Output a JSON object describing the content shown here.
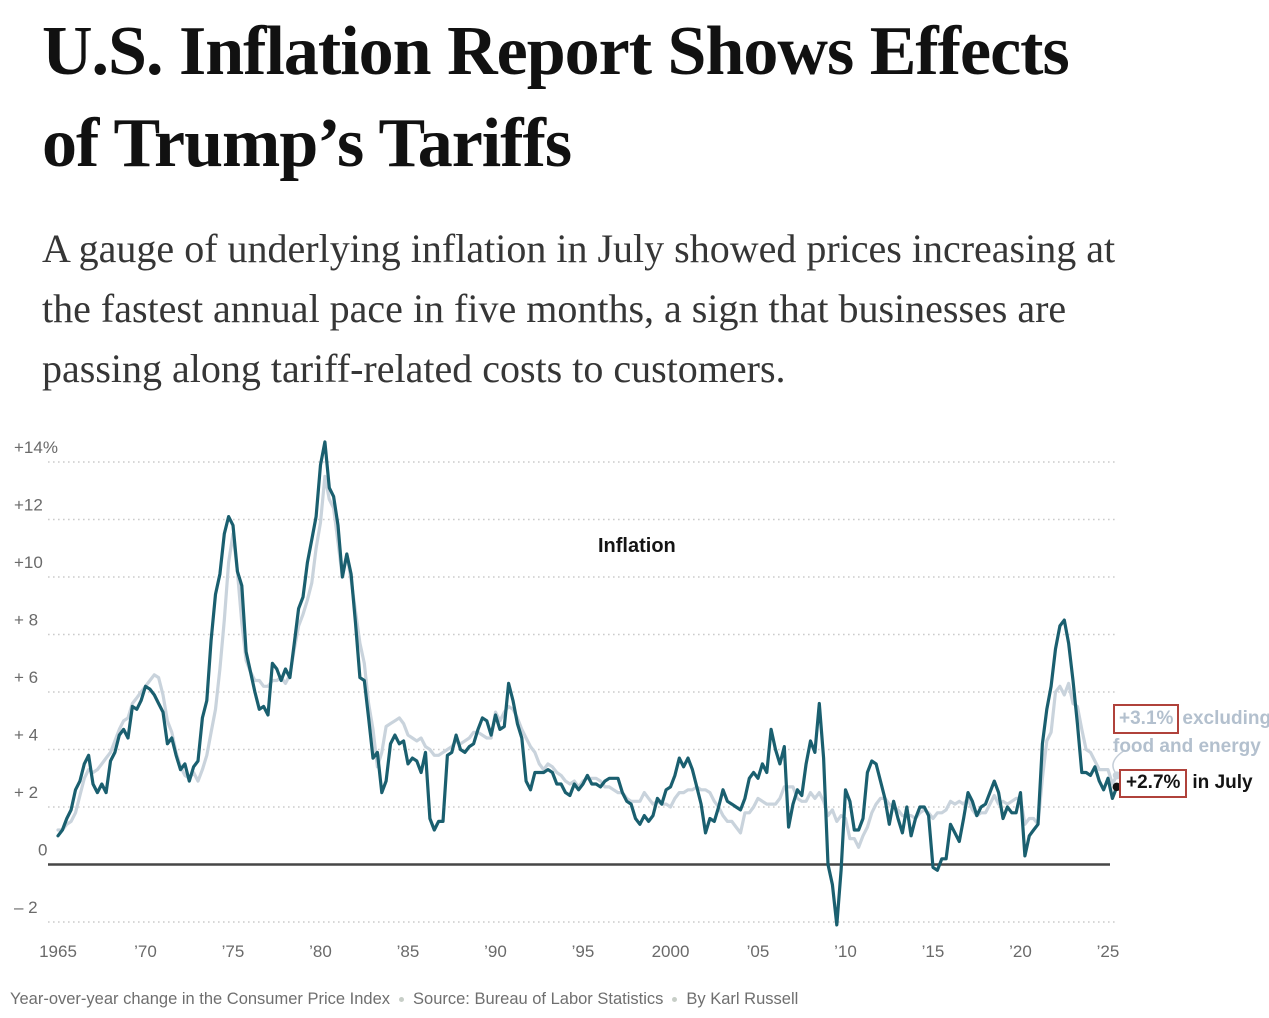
{
  "article": {
    "headline_lines": [
      "U.S. Inflation Report Shows Effects",
      "of Trump’s Tariffs"
    ],
    "subhead_lines": [
      "A gauge of underlying inflation in July showed prices increasing at",
      "the fastest annual pace in five months, a sign that businesses are",
      "passing along tariff-related costs to customers."
    ]
  },
  "chart_data": {
    "type": "line",
    "description": "Year-over-year percent change in the Consumer Price Index, 1965 through July 2025, quarterly points",
    "x_start": 1965.0,
    "x_step_years": 0.25,
    "xlim": [
      1965.0,
      2025.58
    ],
    "ylim": [
      -3.3,
      15.6
    ],
    "grid": "dotted-horizontal",
    "legend_position": "inline-annotations",
    "x_axis": {
      "ticks": [
        {
          "t": 1965,
          "label": "1965"
        },
        {
          "t": 1970,
          "label": "’70"
        },
        {
          "t": 1975,
          "label": "’75"
        },
        {
          "t": 1980,
          "label": "’80"
        },
        {
          "t": 1985,
          "label": "’85"
        },
        {
          "t": 1990,
          "label": "’90"
        },
        {
          "t": 1995,
          "label": "’95"
        },
        {
          "t": 2000,
          "label": "2000"
        },
        {
          "t": 2005,
          "label": "’05"
        },
        {
          "t": 2010,
          "label": "’10"
        },
        {
          "t": 2015,
          "label": "’15"
        },
        {
          "t": 2020,
          "label": "’20"
        },
        {
          "t": 2025,
          "label": "’25"
        }
      ]
    },
    "y_axis": {
      "unit": "percent",
      "ticks": [
        {
          "v": 14,
          "label": "+14%"
        },
        {
          "v": 12,
          "label": "+12"
        },
        {
          "v": 10,
          "label": "+10"
        },
        {
          "v": 8,
          "label": "+ 8"
        },
        {
          "v": 6,
          "label": "+ 6"
        },
        {
          "v": 4,
          "label": "+ 4"
        },
        {
          "v": 2,
          "label": "+ 2"
        },
        {
          "v": 0,
          "label": "0"
        },
        {
          "v": -2,
          "label": "– 2"
        }
      ]
    },
    "series": [
      {
        "name": "Excluding food and energy (core CPI)",
        "color": "#c9d3dc",
        "end_value": 3.1,
        "values": [
          1.2,
          1.2,
          1.4,
          1.5,
          1.8,
          2.4,
          3.0,
          3.3,
          3.2,
          3.3,
          3.5,
          3.7,
          3.9,
          4.3,
          4.7,
          5.0,
          5.1,
          5.6,
          5.8,
          6.0,
          6.2,
          6.4,
          6.6,
          6.5,
          5.9,
          5.0,
          4.6,
          3.9,
          3.4,
          3.1,
          3.0,
          3.2,
          2.9,
          3.3,
          3.8,
          4.6,
          5.4,
          6.8,
          8.5,
          10.5,
          11.5,
          10.2,
          8.4,
          7.1,
          6.7,
          6.4,
          6.4,
          6.2,
          6.2,
          6.4,
          6.4,
          6.5,
          6.3,
          6.6,
          7.5,
          8.3,
          8.7,
          9.2,
          9.8,
          11.0,
          11.9,
          13.5,
          12.7,
          12.4,
          11.2,
          10.0,
          10.8,
          9.9,
          8.8,
          7.7,
          7.0,
          5.6,
          4.7,
          3.4,
          3.9,
          4.8,
          4.9,
          5.0,
          5.1,
          4.9,
          4.5,
          4.4,
          4.3,
          4.4,
          4.1,
          4.0,
          3.8,
          3.8,
          3.9,
          4.0,
          4.1,
          4.3,
          4.2,
          4.3,
          4.4,
          4.6,
          4.6,
          4.5,
          4.4,
          4.4,
          5.3,
          5.0,
          5.3,
          5.5,
          5.4,
          5.1,
          4.7,
          4.4,
          4.1,
          3.9,
          3.5,
          3.3,
          3.5,
          3.4,
          3.2,
          3.1,
          2.9,
          2.8,
          2.9,
          2.7,
          2.9,
          3.0,
          3.0,
          3.0,
          2.9,
          2.7,
          2.7,
          2.6,
          2.5,
          2.5,
          2.3,
          2.2,
          2.2,
          2.2,
          2.5,
          2.3,
          2.1,
          2.2,
          2.1,
          2.1,
          2.0,
          2.3,
          2.5,
          2.5,
          2.6,
          2.6,
          2.7,
          2.6,
          2.6,
          2.5,
          2.2,
          2.0,
          1.7,
          1.5,
          1.5,
          1.3,
          1.1,
          1.8,
          1.8,
          2.0,
          2.3,
          2.2,
          2.1,
          2.1,
          2.1,
          2.3,
          2.7,
          2.7,
          2.7,
          2.3,
          2.2,
          2.2,
          2.5,
          2.3,
          2.5,
          2.2,
          1.7,
          1.9,
          1.5,
          1.7,
          1.6,
          0.9,
          0.9,
          0.6,
          1.0,
          1.3,
          1.8,
          2.1,
          2.3,
          2.3,
          2.1,
          2.0,
          1.9,
          1.7,
          1.7,
          1.7,
          1.6,
          1.8,
          1.9,
          1.8,
          1.6,
          1.8,
          1.8,
          1.9,
          2.2,
          2.1,
          2.2,
          2.1,
          2.3,
          1.9,
          1.7,
          1.8,
          1.8,
          2.1,
          2.4,
          2.1,
          2.2,
          2.1,
          2.2,
          2.3,
          2.3,
          1.4,
          1.6,
          1.6,
          1.4,
          3.0,
          4.3,
          4.6,
          6.0,
          6.2,
          5.9,
          6.3,
          5.6,
          5.5,
          4.7,
          4.0,
          3.9,
          3.6,
          3.3,
          3.3,
          3.3,
          2.8,
          3.1
        ]
      },
      {
        "name": "Inflation (CPI, all items)",
        "color": "#1a5f6f",
        "end_value": 2.7,
        "values": [
          1.0,
          1.2,
          1.6,
          1.9,
          2.6,
          2.9,
          3.5,
          3.8,
          2.8,
          2.5,
          2.8,
          2.5,
          3.6,
          3.9,
          4.5,
          4.7,
          4.4,
          5.5,
          5.4,
          5.7,
          6.2,
          6.1,
          5.9,
          5.6,
          5.3,
          4.2,
          4.4,
          3.8,
          3.3,
          3.5,
          2.9,
          3.4,
          3.6,
          5.1,
          5.7,
          7.8,
          9.4,
          10.1,
          11.5,
          12.1,
          11.8,
          10.2,
          9.7,
          7.4,
          6.7,
          6.0,
          5.4,
          5.5,
          5.2,
          7.0,
          6.8,
          6.4,
          6.8,
          6.5,
          7.7,
          8.9,
          9.3,
          10.5,
          11.3,
          12.1,
          13.9,
          14.7,
          13.1,
          12.8,
          11.8,
          10.0,
          10.8,
          10.1,
          8.4,
          6.5,
          6.4,
          5.1,
          3.7,
          3.9,
          2.5,
          2.9,
          4.2,
          4.5,
          4.2,
          4.3,
          3.5,
          3.7,
          3.6,
          3.2,
          3.9,
          1.6,
          1.2,
          1.5,
          1.5,
          3.8,
          3.9,
          4.5,
          4.0,
          3.9,
          4.1,
          4.2,
          4.7,
          5.1,
          5.0,
          4.5,
          5.2,
          4.7,
          4.8,
          6.3,
          5.7,
          4.9,
          4.4,
          2.9,
          2.6,
          3.2,
          3.2,
          3.2,
          3.3,
          3.2,
          2.8,
          2.8,
          2.5,
          2.4,
          2.8,
          2.6,
          2.8,
          3.1,
          2.8,
          2.8,
          2.7,
          2.9,
          3.0,
          3.0,
          3.0,
          2.5,
          2.2,
          2.1,
          1.6,
          1.4,
          1.7,
          1.5,
          1.7,
          2.3,
          2.1,
          2.6,
          2.7,
          3.1,
          3.7,
          3.4,
          3.7,
          3.3,
          2.7,
          2.1,
          1.1,
          1.6,
          1.5,
          2.0,
          2.6,
          2.2,
          2.1,
          2.0,
          1.9,
          2.3,
          3.0,
          3.2,
          3.0,
          3.5,
          3.2,
          4.7,
          4.0,
          3.5,
          4.1,
          1.3,
          2.1,
          2.6,
          2.4,
          3.5,
          4.3,
          3.9,
          5.6,
          3.7,
          0.0,
          -0.7,
          -2.1,
          -0.2,
          2.6,
          2.2,
          1.2,
          1.2,
          1.6,
          3.2,
          3.6,
          3.5,
          2.9,
          2.3,
          1.4,
          2.2,
          1.6,
          1.1,
          2.0,
          1.0,
          1.6,
          2.0,
          2.0,
          1.7,
          -0.1,
          -0.2,
          0.2,
          0.2,
          1.4,
          1.1,
          0.8,
          1.6,
          2.5,
          2.2,
          1.7,
          2.0,
          2.1,
          2.5,
          2.9,
          2.5,
          1.6,
          2.0,
          1.8,
          1.8,
          2.5,
          0.3,
          1.0,
          1.2,
          1.4,
          4.2,
          5.4,
          6.2,
          7.5,
          8.3,
          8.5,
          7.7,
          6.4,
          4.9,
          3.2,
          3.2,
          3.1,
          3.4,
          2.9,
          2.6,
          3.0,
          2.3,
          2.7
        ]
      }
    ],
    "annotations": {
      "series_label": "Inflation",
      "core_end": {
        "value_boxed": "+3.1%",
        "label_line1": "excluding",
        "label_line2": "food and energy",
        "value": 3.1
      },
      "headline_end": {
        "value_boxed": "+2.7%",
        "label": "in July",
        "value": 2.7
      },
      "box_color": "#b0423b"
    }
  },
  "footer": {
    "note": "Year-over-year change in the Consumer Price Index",
    "source": "Source: Bureau of Labor Statistics",
    "byline": "By Karl Russell"
  },
  "colors": {
    "headline_text": "#111111",
    "subhead_text": "#363636",
    "inflation_line": "#1a5f6f",
    "core_line": "#c9d3dc",
    "core_annotation_text": "#b3c0ce",
    "annotation_box": "#b0423b",
    "gridline": "#cbcbcb",
    "zero_line": "#474747",
    "axis_text": "#6a6a6a",
    "footer_text": "#6f6f6f"
  }
}
